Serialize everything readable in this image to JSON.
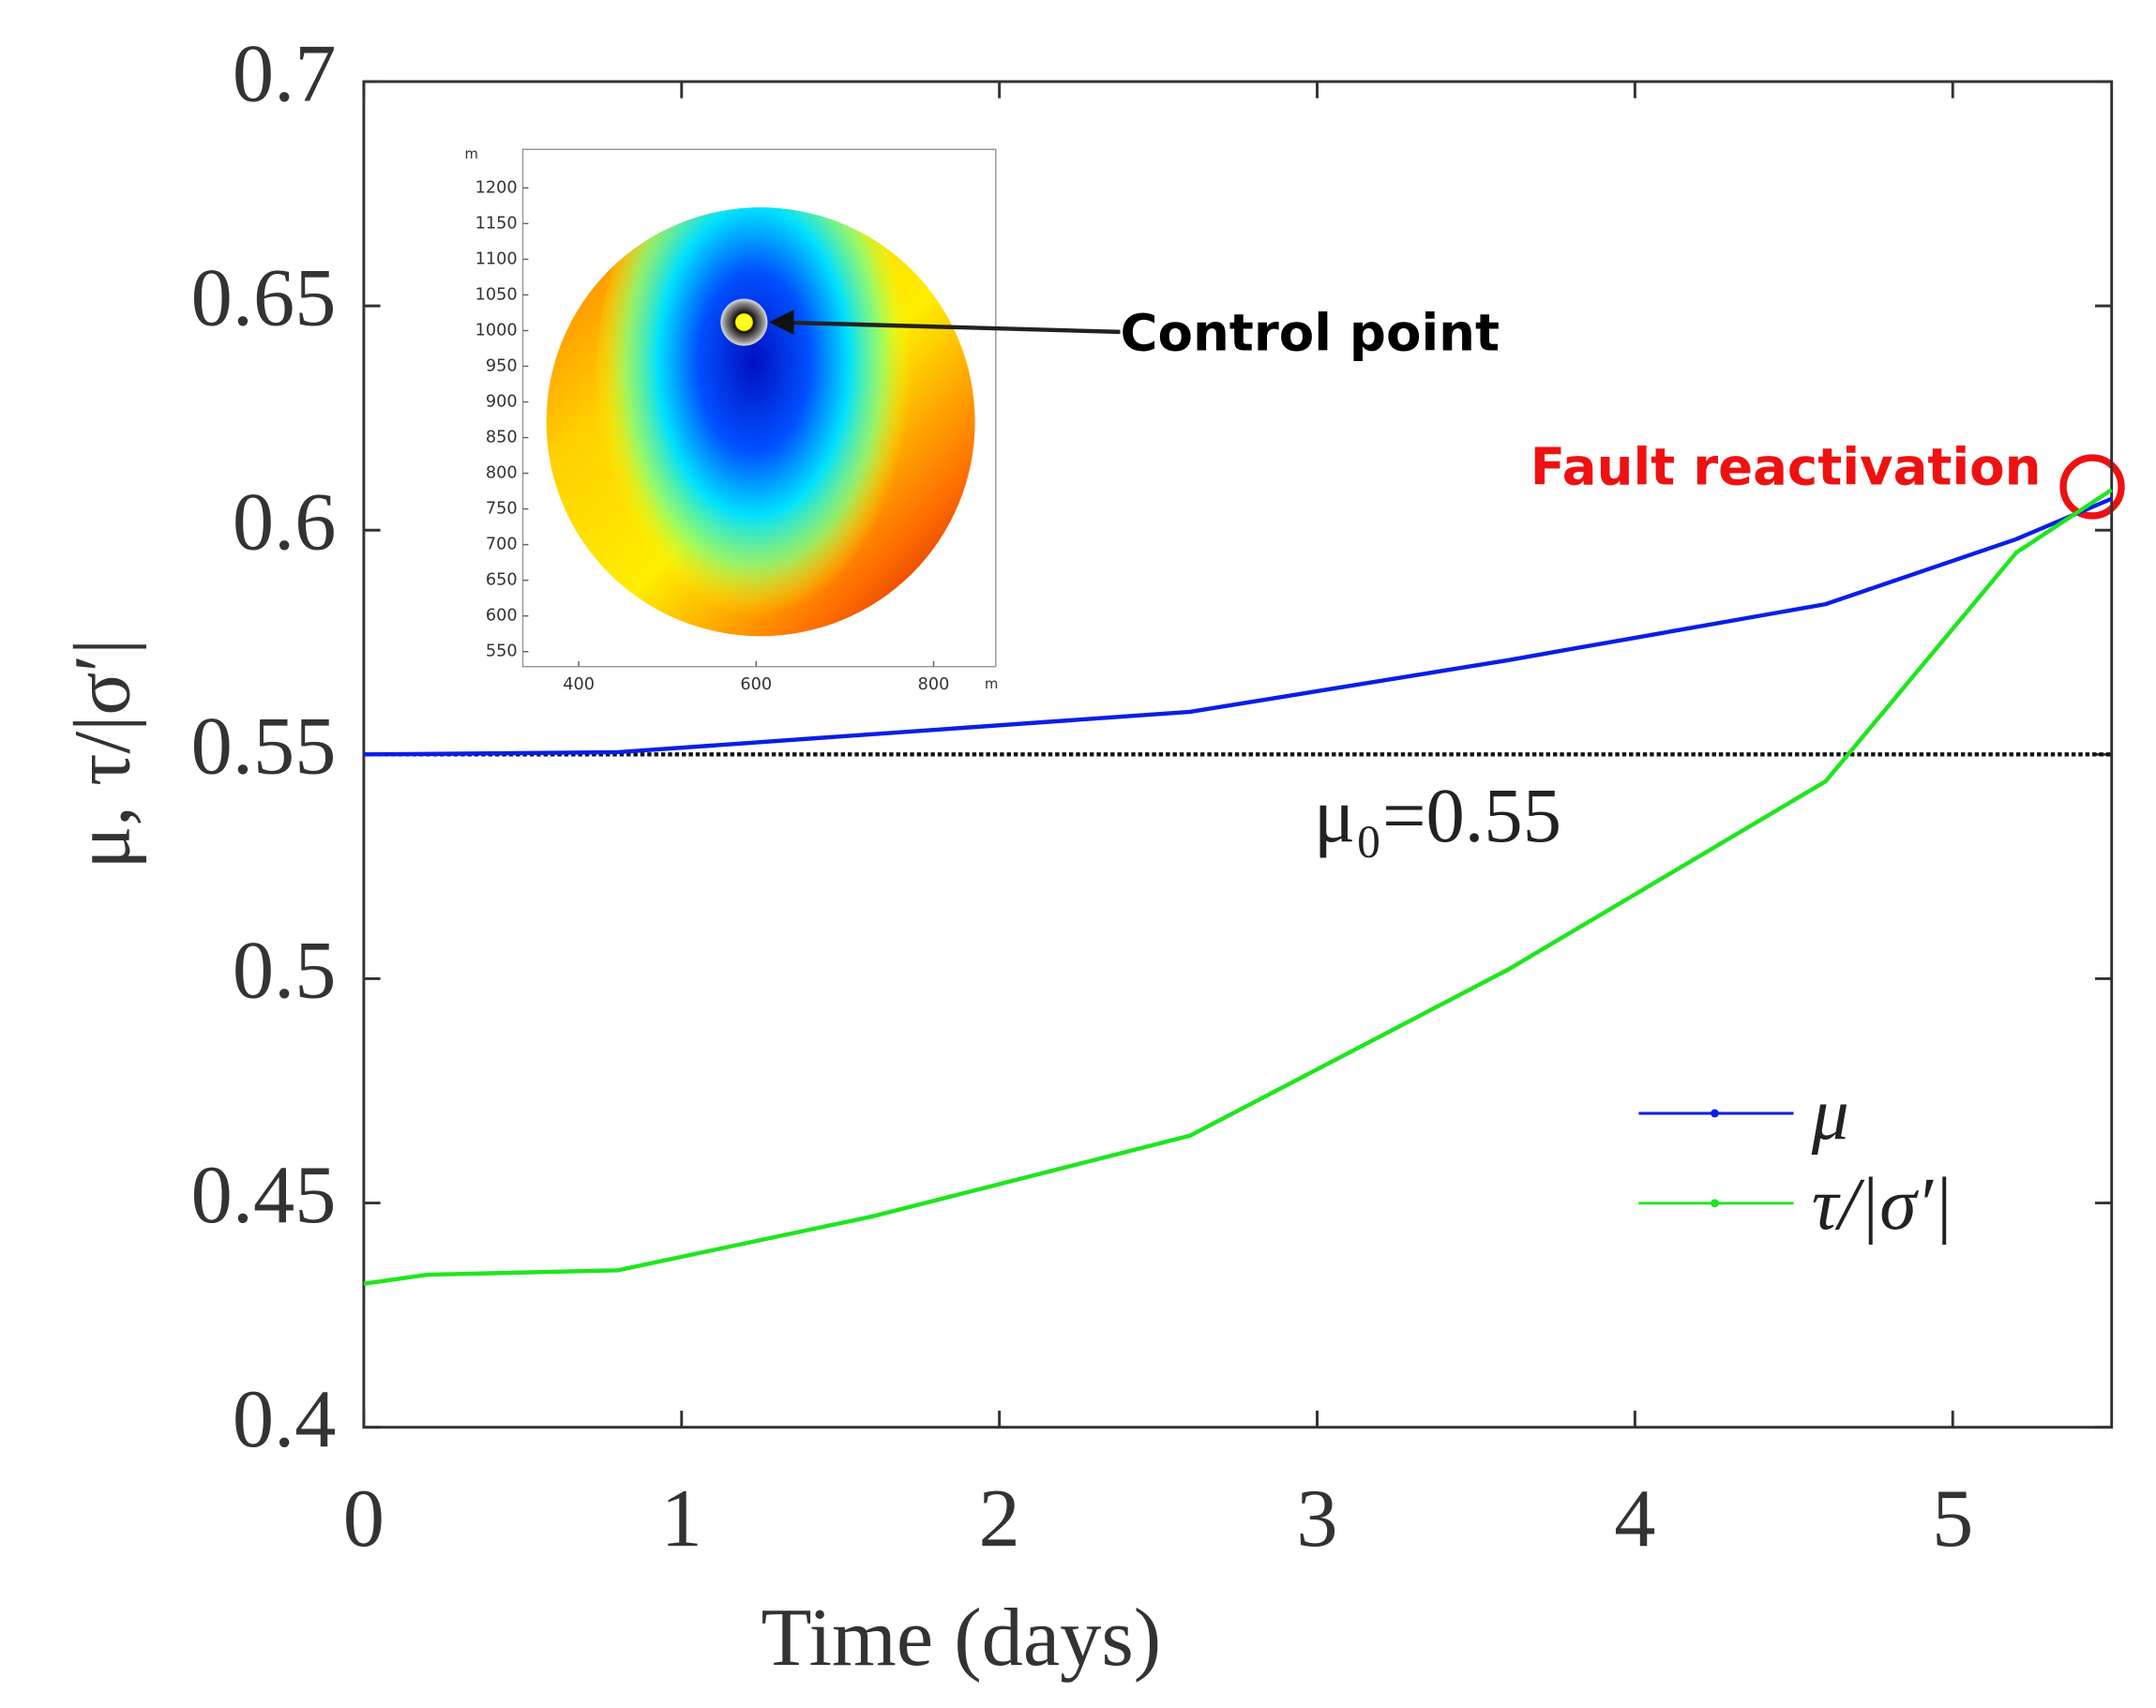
{
  "chart_data": {
    "type": "line",
    "xlabel": "Time (days)",
    "ylabel": "μ, τ/|σ′|",
    "x": [
      0,
      0.2,
      0.8,
      1.6,
      2.6,
      3.6,
      4.6,
      5.2,
      5.5
    ],
    "series": [
      {
        "name": "μ",
        "color": "#0a1ee6",
        "values": [
          0.55,
          0.5501,
          0.5505,
          0.5545,
          0.5595,
          0.571,
          0.5835,
          0.598,
          0.607
        ]
      },
      {
        "name": "τ/|σ′|",
        "color": "#1ee61e",
        "values": [
          0.432,
          0.434,
          0.435,
          0.447,
          0.465,
          0.502,
          0.544,
          0.595,
          0.609
        ]
      }
    ],
    "xlim": [
      0,
      5.5
    ],
    "xticks": [
      0,
      1,
      2,
      3,
      4,
      5
    ],
    "ylim": [
      0.4,
      0.7
    ],
    "yticks": [
      0.4,
      0.45,
      0.5,
      0.55,
      0.6,
      0.65,
      0.7
    ],
    "hline": {
      "value": 0.55,
      "label": "μ₀=0.55"
    },
    "annotations": {
      "control_point": "Control point",
      "fault_reactivation": "Fault reactivation"
    },
    "legend": "lower right",
    "inset": {
      "xlim": [
        337,
        870
      ],
      "ylim": [
        529,
        1254
      ],
      "xticks": [
        400,
        600,
        800
      ],
      "yticks": [
        550,
        600,
        650,
        700,
        750,
        800,
        850,
        900,
        950,
        1000,
        1050,
        1100,
        1150,
        1200
      ],
      "xunit": "m",
      "yunit": "m"
    }
  }
}
